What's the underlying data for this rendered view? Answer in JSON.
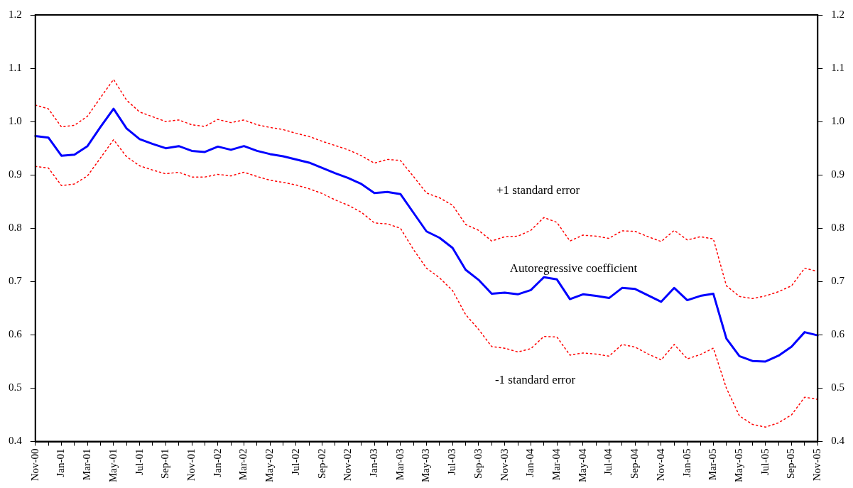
{
  "chart_data": {
    "type": "line",
    "categories": [
      "Nov-00",
      null,
      "Jan-01",
      null,
      "Mar-01",
      null,
      "May-01",
      null,
      "Jul-01",
      null,
      "Sep-01",
      null,
      "Nov-01",
      null,
      "Jan-02",
      null,
      "Mar-02",
      null,
      "May-02",
      null,
      "Jul-02",
      null,
      "Sep-02",
      null,
      "Nov-02",
      null,
      "Jan-03",
      null,
      "Mar-03",
      null,
      "May-03",
      null,
      "Jul-03",
      null,
      "Sep-03",
      null,
      "Nov-03",
      null,
      "Jan-04",
      null,
      "Mar-04",
      null,
      "May-04",
      null,
      "Jul-04",
      null,
      "Sep-04",
      null,
      "Nov-04",
      null,
      "Jan-05",
      null,
      "Mar-05",
      null,
      "May-05",
      null,
      "Jul-05",
      null,
      "Sep-05",
      null,
      "Nov-05"
    ],
    "series": [
      {
        "name": "+1 standard error",
        "color": "#ff0000",
        "line_style": "dotted",
        "values": [
          1.031,
          1.024,
          0.99,
          0.993,
          1.01,
          1.045,
          1.079,
          1.04,
          1.018,
          1.009,
          1.0,
          1.003,
          0.994,
          0.991,
          1.004,
          0.998,
          1.003,
          0.994,
          0.989,
          0.985,
          0.978,
          0.972,
          0.963,
          0.955,
          0.947,
          0.936,
          0.922,
          0.929,
          0.927,
          0.897,
          0.866,
          0.857,
          0.843,
          0.807,
          0.796,
          0.776,
          0.784,
          0.785,
          0.796,
          0.82,
          0.811,
          0.776,
          0.787,
          0.785,
          0.781,
          0.795,
          0.794,
          0.784,
          0.775,
          0.796,
          0.778,
          0.784,
          0.78,
          0.692,
          0.672,
          0.668,
          0.673,
          0.681,
          0.692,
          0.725,
          0.719
        ]
      },
      {
        "name": "Autoregressive coefficient",
        "color": "#0000ff",
        "line_style": "solid",
        "values": [
          0.973,
          0.97,
          0.936,
          0.938,
          0.954,
          0.99,
          1.024,
          0.987,
          0.967,
          0.958,
          0.95,
          0.954,
          0.945,
          0.943,
          0.953,
          0.947,
          0.954,
          0.945,
          0.939,
          0.935,
          0.929,
          0.923,
          0.913,
          0.903,
          0.894,
          0.883,
          0.866,
          0.868,
          0.864,
          0.829,
          0.794,
          0.782,
          0.763,
          0.722,
          0.703,
          0.677,
          0.679,
          0.676,
          0.684,
          0.708,
          0.704,
          0.667,
          0.676,
          0.673,
          0.669,
          0.688,
          0.686,
          0.674,
          0.662,
          0.688,
          0.665,
          0.673,
          0.677,
          0.593,
          0.56,
          0.551,
          0.55,
          0.561,
          0.578,
          0.605,
          0.599
        ]
      },
      {
        "name": "-1 standard error",
        "color": "#ff0000",
        "line_style": "dotted",
        "values": [
          0.916,
          0.913,
          0.88,
          0.883,
          0.898,
          0.932,
          0.966,
          0.934,
          0.917,
          0.909,
          0.902,
          0.905,
          0.896,
          0.896,
          0.901,
          0.898,
          0.905,
          0.897,
          0.89,
          0.886,
          0.881,
          0.874,
          0.865,
          0.853,
          0.843,
          0.83,
          0.81,
          0.808,
          0.8,
          0.76,
          0.725,
          0.707,
          0.683,
          0.638,
          0.61,
          0.578,
          0.575,
          0.568,
          0.574,
          0.597,
          0.596,
          0.562,
          0.566,
          0.564,
          0.56,
          0.582,
          0.577,
          0.564,
          0.553,
          0.582,
          0.555,
          0.563,
          0.575,
          0.5,
          0.448,
          0.432,
          0.427,
          0.435,
          0.45,
          0.483,
          0.479
        ]
      }
    ],
    "ylim": [
      0.4,
      1.2
    ],
    "yticks": [
      {
        "value": 0.4,
        "label": "0.4"
      },
      {
        "value": 0.5,
        "label": "0.5"
      },
      {
        "value": 0.6,
        "label": "0.6"
      },
      {
        "value": 0.7,
        "label": "0.7"
      },
      {
        "value": 0.8,
        "label": "0.8"
      },
      {
        "value": 0.9,
        "label": "0.9"
      },
      {
        "value": 1.0,
        "label": "1.0"
      },
      {
        "value": 1.1,
        "label": "1.1"
      },
      {
        "value": 1.2,
        "label": "1.2"
      }
    ],
    "y2lim": [
      0.4,
      1.2
    ],
    "y2ticks": [
      {
        "value": 0.4,
        "label": "0.4"
      },
      {
        "value": 0.5,
        "label": "0.5"
      },
      {
        "value": 0.6,
        "label": "0.6"
      },
      {
        "value": 0.7,
        "label": "0.7"
      },
      {
        "value": 0.8,
        "label": "0.8"
      },
      {
        "value": 0.9,
        "label": "0.9"
      },
      {
        "value": 1.0,
        "label": "1.0"
      },
      {
        "value": 1.1,
        "label": "1.1"
      },
      {
        "value": 1.2,
        "label": "1.2"
      }
    ],
    "grid": false,
    "legend": false,
    "marker": "none"
  }
}
